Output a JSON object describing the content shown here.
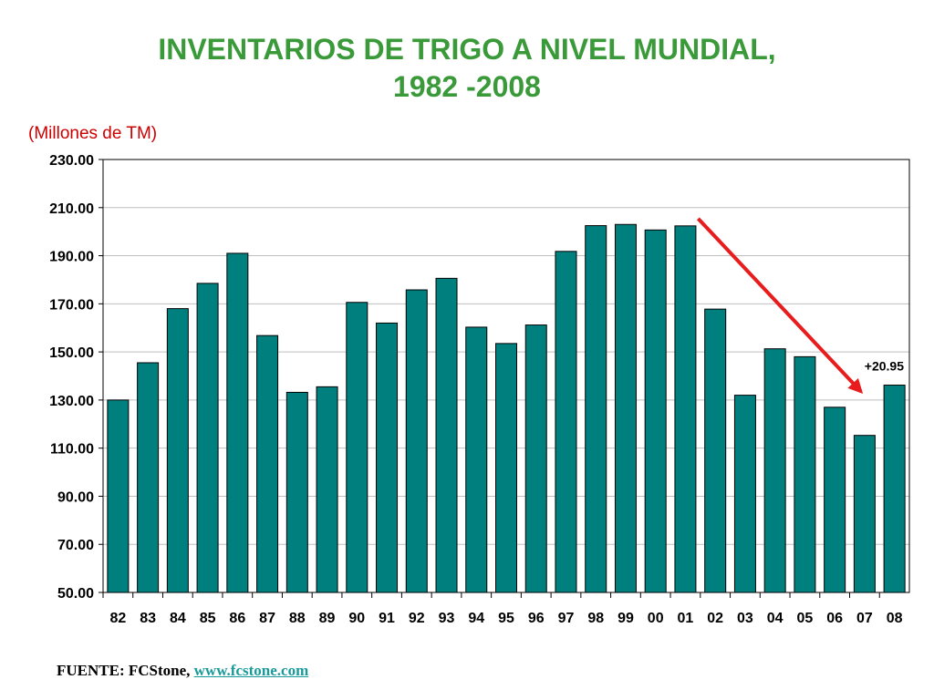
{
  "title_line1": "INVENTARIOS DE TRIGO A NIVEL MUNDIAL,",
  "title_line2": "1982 -2008",
  "units": "(Millones de TM)",
  "source_label": "FUENTE: FCStone,",
  "source_link": "www.fcstone.com",
  "chart_data": {
    "type": "bar",
    "categories": [
      "82",
      "83",
      "84",
      "85",
      "86",
      "87",
      "88",
      "89",
      "90",
      "91",
      "92",
      "93",
      "94",
      "95",
      "96",
      "97",
      "98",
      "99",
      "00",
      "01",
      "02",
      "03",
      "04",
      "05",
      "06",
      "07",
      "08"
    ],
    "values": [
      130.0,
      145.5,
      168.0,
      178.5,
      191.0,
      156.8,
      133.2,
      135.5,
      170.6,
      162.0,
      175.8,
      180.6,
      160.3,
      153.5,
      161.2,
      191.8,
      202.5,
      203.0,
      200.7,
      202.4,
      167.8,
      132.0,
      151.3,
      148.0,
      127.0,
      115.3,
      136.2
    ],
    "ylim": [
      50,
      230
    ],
    "yticks": [
      "50.00",
      "70.00",
      "90.00",
      "110.00",
      "130.00",
      "150.00",
      "170.00",
      "190.00",
      "210.00",
      "230.00"
    ],
    "grid": true,
    "bar_color": "#007f7f",
    "arrow_color": "#e81c1c",
    "annotation": {
      "text": "+20.95",
      "from_category": "01",
      "to_category": "07"
    }
  }
}
